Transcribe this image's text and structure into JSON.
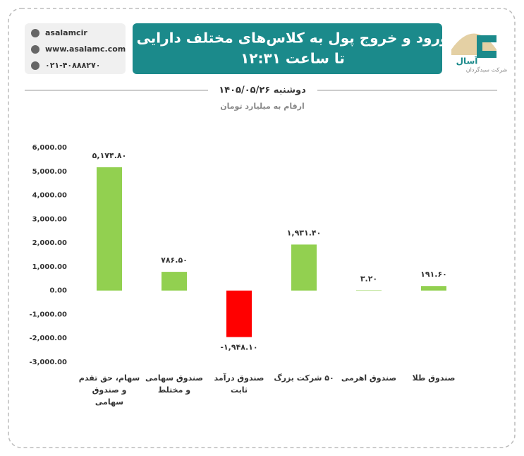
{
  "header": {
    "contacts": [
      "asalamcir",
      "www.asalamc.com",
      "۰۲۱-۴۰۸۸۸۲۷۰"
    ],
    "logo_name": "آسال",
    "logo_subtitle": "شرکت سبدگردان"
  },
  "chart_data": {
    "type": "bar",
    "title": [
      "ورود و خروج پول به کلاس‌های مختلف دارایی",
      "تا ساعت ۱۲:۳۱"
    ],
    "date": "دوشنبه ۱۴۰۵/۰۵/۲۶",
    "subtitle": "ارقام به میلیارد تومان",
    "categories": [
      "سهام، حق تقدم و صندوق سهامی",
      "صندوق سهامی و مختلط",
      "صندوق درآمد ثابت",
      "۵۰ شرکت بزرگ",
      "صندوق اهرمی",
      "صندوق طلا"
    ],
    "values": [
      5174.8,
      786.5,
      -1948.1,
      1931.4,
      3.2,
      191.6
    ],
    "value_labels": [
      "۵,۱۷۴.۸۰",
      "۷۸۶.۵۰",
      "-۱,۹۴۸.۱۰",
      "۱,۹۳۱.۴۰",
      "۳.۲۰",
      "۱۹۱.۶۰"
    ],
    "colors": [
      "#92d050",
      "#92d050",
      "#ff0000",
      "#92d050",
      "#92d050",
      "#92d050"
    ],
    "ylim": [
      -3000,
      6000
    ],
    "yticks": [
      {
        "value": 6000,
        "label": "6,000.00"
      },
      {
        "value": 5000,
        "label": "5,000.00"
      },
      {
        "value": 4000,
        "label": "4,000.00"
      },
      {
        "value": 3000,
        "label": "3,000.00"
      },
      {
        "value": 2000,
        "label": "2,000.00"
      },
      {
        "value": 1000,
        "label": "1,000.00"
      },
      {
        "value": 0,
        "label": "0.00"
      },
      {
        "value": -1000,
        "label": "-1,000.00"
      },
      {
        "value": -2000,
        "label": "-2,000.00"
      },
      {
        "value": -3000,
        "label": "-3,000.00"
      }
    ],
    "grid": false
  }
}
